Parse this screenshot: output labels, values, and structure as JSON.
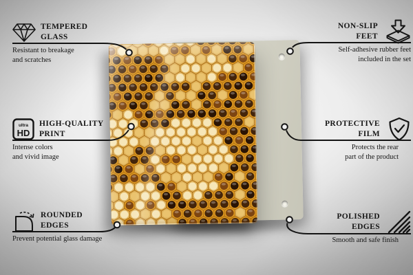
{
  "colors": {
    "connector_line": "#141414",
    "text": "#161616",
    "back_panel": "#cbcabc",
    "dot_fill": "#f0f0f0"
  },
  "ultra_hd_badge": {
    "small": "ultra",
    "big": "HD"
  },
  "product": {
    "description": "Tempered glass panel printed with a honey-filled honeycomb photo, standing in front of a beige back panel with mounting holes",
    "honeycomb_colors": {
      "rim": "#dd9820",
      "rim_dark": "#a86a12",
      "cell_dark": "#2a1404",
      "cell_dark2": "#44250a",
      "cell_amber": "#7d4511",
      "wax_light": "#f6e6b8",
      "wax_mid": "#eac36e",
      "wax_rim": "#dfb25a"
    }
  },
  "callouts": [
    {
      "id": "tempered-glass",
      "icon": "diamond-icon",
      "title_line1": "TEMPERED",
      "title_line2": "GLASS",
      "desc_line1": "Resistant to breakage",
      "desc_line2": "and scratches"
    },
    {
      "id": "non-slip-feet",
      "icon": "non-slip-feet-icon",
      "title_line1": "NON-SLIP",
      "title_line2": "FEET",
      "desc_line1": "Self-adhesive rubber feet",
      "desc_line2": "included in the set"
    },
    {
      "id": "high-quality-print",
      "icon": "ultra-hd-icon",
      "title_line1": "HIGH-QUALITY",
      "title_line2": "PRINT",
      "desc_line1": "Intense colors",
      "desc_line2": "and vivid image"
    },
    {
      "id": "protective-film",
      "icon": "shield-check-icon",
      "title_line1": "PROTECTIVE",
      "title_line2": "FILM",
      "desc_line1": "Protects the rear",
      "desc_line2": "part of the product"
    },
    {
      "id": "rounded-edges",
      "icon": "rounded-corner-icon",
      "title_line1": "ROUNDED",
      "title_line2": "EDGES",
      "desc_line1": "Prevent potential glass damage",
      "desc_line2": ""
    },
    {
      "id": "polished-edges",
      "icon": "hatch-lines-icon",
      "title_line1": "POLISHED",
      "title_line2": "EDGES",
      "desc_line1": "Smooth and safe finish",
      "desc_line2": ""
    }
  ]
}
